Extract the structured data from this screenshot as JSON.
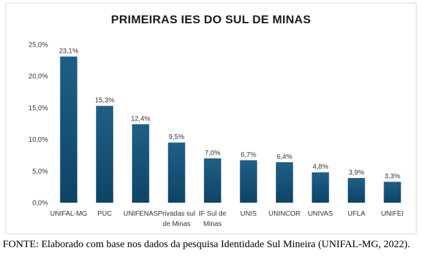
{
  "colors": {
    "bar_top": "#1f5f86",
    "bar_bottom": "#0d4466",
    "grid": "#d9d9d9"
  },
  "caption": "FONTE: Elaborado com base nos dados da pesquisa Identidade Sul Mineira (UNIFAL-MG, 2022).",
  "chart_data": {
    "type": "bar",
    "title": "PRIMEIRAS IES DO SUL DE MINAS",
    "xlabel": "",
    "ylabel": "",
    "ylim": [
      0,
      25
    ],
    "yticks": [
      0,
      5,
      10,
      15,
      20,
      25
    ],
    "ytick_labels": [
      "0,0%",
      "5,0%",
      "10,0%",
      "15,0%",
      "20,0%",
      "25,0%"
    ],
    "grid": false,
    "categories": [
      [
        "UNIFAL-MG"
      ],
      [
        "PUC"
      ],
      [
        "UNIFENAS"
      ],
      [
        "Privadas sul",
        "de Minas"
      ],
      [
        "IF Sul de",
        "Minas"
      ],
      [
        "UNIS"
      ],
      [
        "UNINCOR"
      ],
      [
        "UNIVAS"
      ],
      [
        "UFLA"
      ],
      [
        "UNIFEI"
      ]
    ],
    "values": [
      23.1,
      15.3,
      12.4,
      9.5,
      7.0,
      6.7,
      6.4,
      4.8,
      3.9,
      3.3
    ],
    "value_labels": [
      "23,1%",
      "15,3%",
      "12,4%",
      "9,5%",
      "7,0%",
      "6,7%",
      "6,4%",
      "4,8%",
      "3,9%",
      "3,3%"
    ]
  }
}
